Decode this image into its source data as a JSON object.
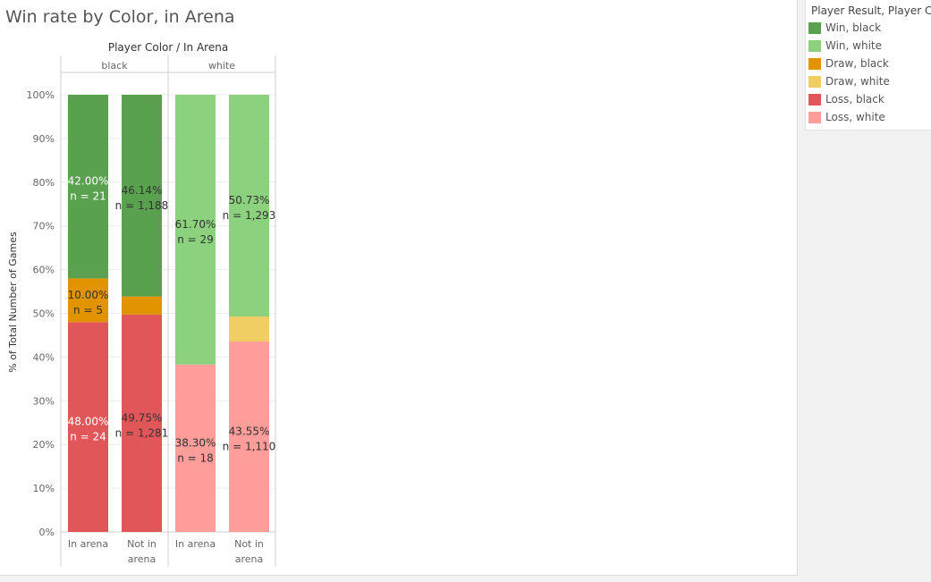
{
  "title": "Win rate by Color, in Arena",
  "legend": {
    "title": "Player Result, Player C...",
    "items": [
      {
        "label": "Win, black",
        "color": "#59a14f"
      },
      {
        "label": "Win, white",
        "color": "#8cd17d"
      },
      {
        "label": "Draw, black",
        "color": "#e19400"
      },
      {
        "label": "Draw, white",
        "color": "#f1ce63"
      },
      {
        "label": "Loss, black",
        "color": "#e15759"
      },
      {
        "label": "Loss, white",
        "color": "#ff9d9a"
      }
    ]
  },
  "chart_data": {
    "type": "bar",
    "stacked": true,
    "header": "Player Color  /  In Arena",
    "ylabel": "% of Total Number of Games",
    "ylim": [
      0,
      100
    ],
    "yticks": [
      "0%",
      "10%",
      "20%",
      "30%",
      "40%",
      "50%",
      "60%",
      "70%",
      "80%",
      "90%",
      "100%"
    ],
    "panels": [
      {
        "name": "black",
        "bars": [
          {
            "category": "In arena",
            "segments": [
              {
                "series": "Loss, black",
                "value": 48.0,
                "label": "48.00%",
                "n": "n = 24"
              },
              {
                "series": "Draw, black",
                "value": 10.0,
                "label": "10.00%",
                "n": "n = 5"
              },
              {
                "series": "Win, black",
                "value": 42.0,
                "label": "42.00%",
                "n": "n = 21"
              }
            ]
          },
          {
            "category": "Not in arena",
            "segments": [
              {
                "series": "Loss, black",
                "value": 49.75,
                "label": "49.75%",
                "n": "n = 1,281"
              },
              {
                "series": "Draw, black",
                "value": 4.11,
                "label": "",
                "n": ""
              },
              {
                "series": "Win, black",
                "value": 46.14,
                "label": "46.14%",
                "n": "n = 1,188"
              }
            ]
          }
        ]
      },
      {
        "name": "white",
        "bars": [
          {
            "category": "In arena",
            "segments": [
              {
                "series": "Loss, white",
                "value": 38.3,
                "label": "38.30%",
                "n": "n = 18"
              },
              {
                "series": "Draw, white",
                "value": 0,
                "label": "",
                "n": ""
              },
              {
                "series": "Win, white",
                "value": 61.7,
                "label": "61.70%",
                "n": "n = 29"
              }
            ]
          },
          {
            "category": "Not in arena",
            "segments": [
              {
                "series": "Loss, white",
                "value": 43.55,
                "label": "43.55%",
                "n": "n = 1,110"
              },
              {
                "series": "Draw, white",
                "value": 5.72,
                "label": "",
                "n": ""
              },
              {
                "series": "Win, white",
                "value": 50.73,
                "label": "50.73%",
                "n": "n = 1,293"
              }
            ]
          }
        ]
      }
    ],
    "label_styles": {
      "black|In arena": "light"
    }
  }
}
